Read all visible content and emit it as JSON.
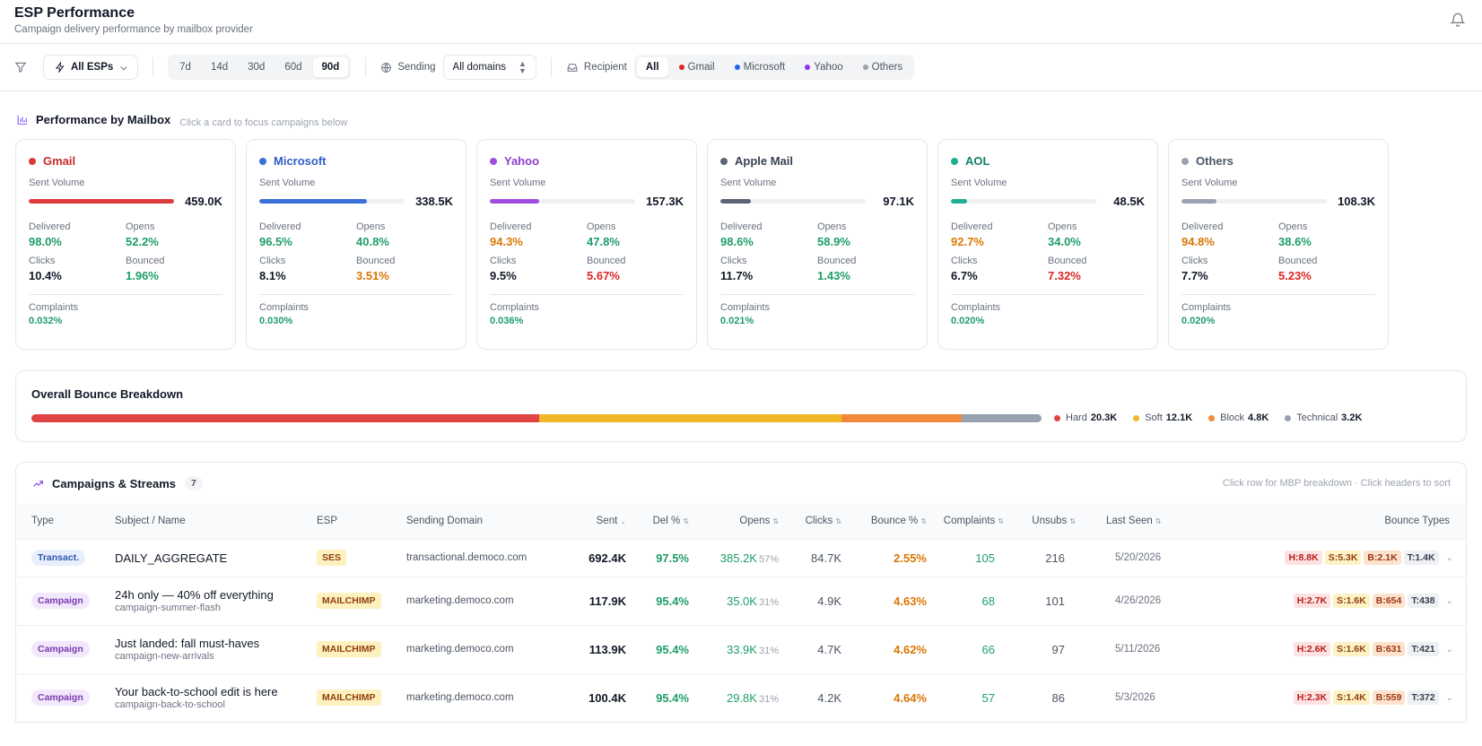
{
  "header": {
    "title": "ESP Performance",
    "subtitle": "Campaign delivery performance by mailbox provider"
  },
  "filters": {
    "esp_select": "All ESPs",
    "ranges": [
      "7d",
      "14d",
      "30d",
      "60d",
      "90d"
    ],
    "active_range": "90d",
    "sending_label": "Sending",
    "domain_select": "All domains",
    "recipient_label": "Recipient",
    "recipients": [
      {
        "label": "All",
        "color": ""
      },
      {
        "label": "Gmail",
        "color": "#dc2626"
      },
      {
        "label": "Microsoft",
        "color": "#2563eb"
      },
      {
        "label": "Yahoo",
        "color": "#9333ea"
      },
      {
        "label": "Others",
        "color": "#9ca3af"
      }
    ],
    "active_recipient": "All"
  },
  "mailbox_section": {
    "title": "Performance by Mailbox",
    "hint": "Click a card to focus campaigns below"
  },
  "labels": {
    "sent_volume": "Sent Volume",
    "delivered": "Delivered",
    "opens": "Opens",
    "clicks": "Clicks",
    "bounced": "Bounced",
    "complaints": "Complaints"
  },
  "cards": [
    {
      "name": "Gmail",
      "color": "#dc3b3b",
      "name_color": "#c92a2a",
      "sent": "459.0K",
      "sent_fraction": 1.0,
      "delivered": "98.0%",
      "delivered_tone": "green",
      "opens": "52.2%",
      "opens_tone": "green",
      "clicks": "10.4%",
      "bounced": "1.96%",
      "bounced_tone": "green",
      "complaints": "0.032%"
    },
    {
      "name": "Microsoft",
      "color": "#3b6fd8",
      "name_color": "#2f5fc4",
      "sent": "338.5K",
      "sent_fraction": 0.74,
      "delivered": "96.5%",
      "delivered_tone": "green",
      "opens": "40.8%",
      "opens_tone": "green",
      "clicks": "8.1%",
      "bounced": "3.51%",
      "bounced_tone": "orange",
      "complaints": "0.030%"
    },
    {
      "name": "Yahoo",
      "color": "#a24be0",
      "name_color": "#8e3fc9",
      "sent": "157.3K",
      "sent_fraction": 0.34,
      "delivered": "94.3%",
      "delivered_tone": "orange",
      "opens": "47.8%",
      "opens_tone": "green",
      "clicks": "9.5%",
      "bounced": "5.67%",
      "bounced_tone": "red",
      "complaints": "0.036%"
    },
    {
      "name": "Apple Mail",
      "color": "#5b6475",
      "name_color": "#374151",
      "sent": "97.1K",
      "sent_fraction": 0.21,
      "delivered": "98.6%",
      "delivered_tone": "green",
      "opens": "58.9%",
      "opens_tone": "green",
      "clicks": "11.7%",
      "bounced": "1.43%",
      "bounced_tone": "green",
      "complaints": "0.021%"
    },
    {
      "name": "AOL",
      "color": "#1fae93",
      "name_color": "#12806b",
      "sent": "48.5K",
      "sent_fraction": 0.11,
      "delivered": "92.7%",
      "delivered_tone": "orange",
      "opens": "34.0%",
      "opens_tone": "green",
      "clicks": "6.7%",
      "bounced": "7.32%",
      "bounced_tone": "red",
      "complaints": "0.020%"
    },
    {
      "name": "Others",
      "color": "#9aa3b2",
      "name_color": "#4b5563",
      "sent": "108.3K",
      "sent_fraction": 0.24,
      "delivered": "94.8%",
      "delivered_tone": "orange",
      "opens": "38.6%",
      "opens_tone": "green",
      "clicks": "7.7%",
      "bounced": "5.23%",
      "bounced_tone": "red",
      "complaints": "0.020%"
    }
  ],
  "bounce_breakdown": {
    "title": "Overall Bounce Breakdown",
    "segments": [
      {
        "label": "Hard",
        "value": "20.3K",
        "amount": 20.3,
        "color": "#e04545"
      },
      {
        "label": "Soft",
        "value": "12.1K",
        "amount": 12.1,
        "color": "#f0b829"
      },
      {
        "label": "Block",
        "value": "4.8K",
        "amount": 4.8,
        "color": "#f0893a"
      },
      {
        "label": "Technical",
        "value": "3.2K",
        "amount": 3.2,
        "color": "#97a1b0"
      }
    ]
  },
  "campaigns": {
    "title": "Campaigns & Streams",
    "count": "7",
    "hint": "Click row for MBP breakdown · Click headers to sort",
    "columns": [
      "Type",
      "Subject / Name",
      "ESP",
      "Sending Domain",
      "Sent",
      "Del %",
      "Opens",
      "Clicks",
      "Bounce %",
      "Complaints",
      "Unsubs",
      "Last Seen",
      "Bounce Types"
    ],
    "rows": [
      {
        "type": "Transact.",
        "type_kind": "trans",
        "subject": "DAILY_AGGREGATE",
        "sub": "",
        "esp": "SES",
        "domain": "transactional.democo.com",
        "sent": "692.4K",
        "del": "97.5%",
        "opens": "385.2K",
        "opens_pct": "57%",
        "clicks": "84.7K",
        "bounce": "2.55%",
        "complaints": "105",
        "unsubs": "216",
        "last_seen": "5/20/2026",
        "bt": [
          "H:8.8K",
          "S:5.3K",
          "B:2.1K",
          "T:1.4K"
        ]
      },
      {
        "type": "Campaign",
        "type_kind": "camp",
        "subject": "24h only — 40% off everything",
        "sub": "campaign-summer-flash",
        "esp": "MAILCHIMP",
        "domain": "marketing.democo.com",
        "sent": "117.9K",
        "del": "95.4%",
        "opens": "35.0K",
        "opens_pct": "31%",
        "clicks": "4.9K",
        "bounce": "4.63%",
        "complaints": "68",
        "unsubs": "101",
        "last_seen": "4/26/2026",
        "bt": [
          "H:2.7K",
          "S:1.6K",
          "B:654",
          "T:438"
        ]
      },
      {
        "type": "Campaign",
        "type_kind": "camp",
        "subject": "Just landed: fall must-haves",
        "sub": "campaign-new-arrivals",
        "esp": "MAILCHIMP",
        "domain": "marketing.democo.com",
        "sent": "113.9K",
        "del": "95.4%",
        "opens": "33.9K",
        "opens_pct": "31%",
        "clicks": "4.7K",
        "bounce": "4.62%",
        "complaints": "66",
        "unsubs": "97",
        "last_seen": "5/11/2026",
        "bt": [
          "H:2.6K",
          "S:1.6K",
          "B:631",
          "T:421"
        ]
      },
      {
        "type": "Campaign",
        "type_kind": "camp",
        "subject": "Your back-to-school edit is here",
        "sub": "campaign-back-to-school",
        "esp": "MAILCHIMP",
        "domain": "marketing.democo.com",
        "sent": "100.4K",
        "del": "95.4%",
        "opens": "29.8K",
        "opens_pct": "31%",
        "clicks": "4.2K",
        "bounce": "4.64%",
        "complaints": "57",
        "unsubs": "86",
        "last_seen": "5/3/2026",
        "bt": [
          "H:2.3K",
          "S:1.4K",
          "B:559",
          "T:372"
        ]
      }
    ]
  }
}
